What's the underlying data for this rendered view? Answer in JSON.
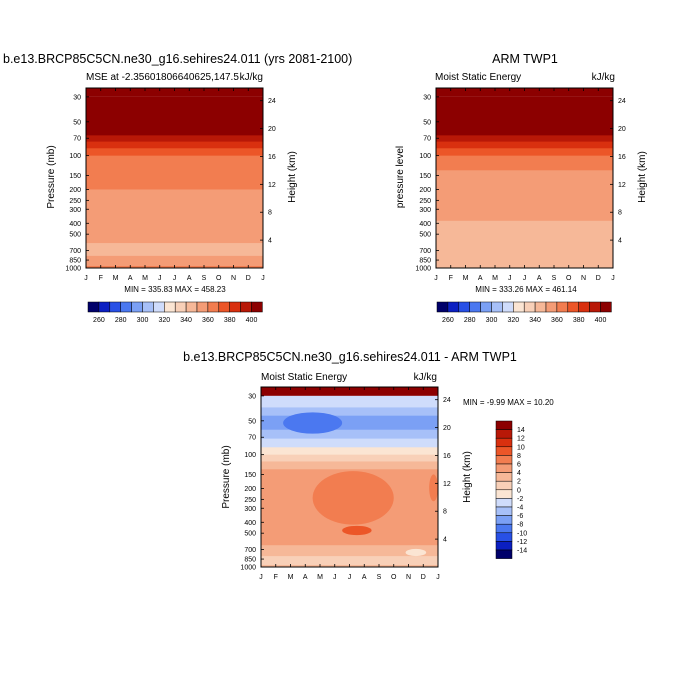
{
  "chart_data": [
    {
      "type": "heatmap",
      "title": "b.e13.BRCP85C5CN.ne30_g16.sehires24.011 (yrs 2081-2100)",
      "subtitle_left": "MSE at -2.35601806640625,147.5",
      "subtitle_right": "kJ/kg",
      "ylabel": "Pressure (mb)",
      "ylabel_right": "Height (km)",
      "x_ticks": [
        "J",
        "F",
        "M",
        "A",
        "M",
        "J",
        "J",
        "A",
        "S",
        "O",
        "N",
        "D",
        "J"
      ],
      "y_ticks": [
        "30",
        "50",
        "70",
        "100",
        "150",
        "200",
        "250",
        "300",
        "400",
        "500",
        "700",
        "850",
        "1000"
      ],
      "y_ticks_right": [
        "24",
        "20",
        "16",
        "12",
        "8",
        "4"
      ],
      "stats": "MIN = 335.83 MAX = 458.23",
      "layers": [
        {
          "from": 30,
          "to": 58,
          "value": 400
        },
        {
          "from": 58,
          "to": 66,
          "value": 390
        },
        {
          "from": 66,
          "to": 75,
          "value": 380
        },
        {
          "from": 75,
          "to": 86,
          "value": 370
        },
        {
          "from": 86,
          "to": 100,
          "value": 360
        },
        {
          "from": 100,
          "to": 200,
          "value": 350
        },
        {
          "from": 200,
          "to": 600,
          "value": 340
        },
        {
          "from": 600,
          "to": 780,
          "value": 335
        },
        {
          "from": 780,
          "to": 960,
          "value": 340
        },
        {
          "from": 960,
          "to": 1000,
          "value": 350
        }
      ]
    },
    {
      "type": "heatmap",
      "title": "ARM TWP1",
      "subtitle_left": "Moist Static Energy",
      "subtitle_right": "kJ/kg",
      "ylabel": "pressure level",
      "ylabel_right": "Height (km)",
      "x_ticks": [
        "J",
        "F",
        "M",
        "A",
        "M",
        "J",
        "J",
        "A",
        "S",
        "O",
        "N",
        "D",
        "J"
      ],
      "y_ticks": [
        "30",
        "50",
        "70",
        "100",
        "150",
        "200",
        "250",
        "300",
        "400",
        "500",
        "700",
        "850",
        "1000"
      ],
      "y_ticks_right": [
        "24",
        "20",
        "16",
        "12",
        "8",
        "4"
      ],
      "stats": "MIN = 333.26 MAX = 461.14",
      "layers": [
        {
          "from": 30,
          "to": 58,
          "value": 400
        },
        {
          "from": 58,
          "to": 66,
          "value": 390
        },
        {
          "from": 66,
          "to": 75,
          "value": 380
        },
        {
          "from": 75,
          "to": 86,
          "value": 370
        },
        {
          "from": 86,
          "to": 100,
          "value": 360
        },
        {
          "from": 100,
          "to": 135,
          "value": 350
        },
        {
          "from": 135,
          "to": 380,
          "value": 340
        },
        {
          "from": 380,
          "to": 1000,
          "value": 335
        }
      ]
    },
    {
      "type": "heatmap",
      "title": "b.e13.BRCP85C5CN.ne30_g16.sehires24.011 - ARM TWP1",
      "subtitle_left": "Moist Static Energy",
      "subtitle_right": "kJ/kg",
      "ylabel": "Pressure (mb)",
      "ylabel_right": "Height (km)",
      "x_ticks": [
        "J",
        "F",
        "M",
        "A",
        "M",
        "J",
        "J",
        "A",
        "S",
        "O",
        "N",
        "D",
        "J"
      ],
      "y_ticks": [
        "30",
        "50",
        "70",
        "100",
        "150",
        "200",
        "250",
        "300",
        "400",
        "500",
        "700",
        "850",
        "1000"
      ],
      "y_ticks_right": [
        "24",
        "20",
        "16",
        "12",
        "8",
        "4"
      ],
      "stats": "MIN =  -9.99 MAX =  10.20",
      "layers": [
        {
          "from": 30,
          "to": 38,
          "value": -3
        },
        {
          "from": 38,
          "to": 45,
          "value": -5
        },
        {
          "from": 45,
          "to": 60,
          "value": -7
        },
        {
          "from": 60,
          "to": 72,
          "value": -5
        },
        {
          "from": 72,
          "to": 86,
          "value": -3
        },
        {
          "from": 86,
          "to": 100,
          "value": -1
        },
        {
          "from": 100,
          "to": 115,
          "value": 1
        },
        {
          "from": 115,
          "to": 135,
          "value": 3
        },
        {
          "from": 135,
          "to": 300,
          "value": 5
        },
        {
          "from": 300,
          "to": 640,
          "value": 5
        },
        {
          "from": 640,
          "to": 800,
          "value": 3
        },
        {
          "from": 800,
          "to": 960,
          "value": 1
        },
        {
          "from": 960,
          "to": 1000,
          "value": 3
        }
      ],
      "patches": [
        {
          "p1": 42,
          "p2": 65,
          "m1": 1.5,
          "m2": 5.5,
          "value": -9
        },
        {
          "p1": 140,
          "p2": 420,
          "m1": 3.5,
          "m2": 9.0,
          "value": 7
        },
        {
          "p1": 430,
          "p2": 520,
          "m1": 5.5,
          "m2": 7.5,
          "value": 9
        },
        {
          "p1": 150,
          "p2": 260,
          "m1": 11.4,
          "m2": 12,
          "value": 7
        },
        {
          "p1": 690,
          "p2": 800,
          "m1": 9.8,
          "m2": 11.2,
          "value": -1
        }
      ]
    }
  ],
  "colorbar_horizontal": {
    "labels": [
      "260",
      "280",
      "300",
      "320",
      "340",
      "360",
      "380",
      "400"
    ],
    "colors": [
      "#00006a",
      "#0b1fc2",
      "#2850e6",
      "#4b78f0",
      "#7ba0f5",
      "#a7c0f8",
      "#cfdcfb",
      "#fbe5d3",
      "#f8d0b8",
      "#f6b898",
      "#f49c76",
      "#f27d50",
      "#ec5628",
      "#d9300f",
      "#b81807",
      "#8c0000"
    ]
  },
  "colorbar_vertical": {
    "labels": [
      "14",
      "12",
      "10",
      "8",
      "6",
      "4",
      "2",
      "0",
      "-2",
      "-4",
      "-6",
      "-8",
      "-10",
      "-12",
      "-14"
    ],
    "colors": [
      "#8c0000",
      "#b81807",
      "#d9300f",
      "#ec5628",
      "#f27d50",
      "#f49c76",
      "#f6b898",
      "#f8d0b8",
      "#fbe5d3",
      "#cfdcfb",
      "#a7c0f8",
      "#7ba0f5",
      "#4b78f0",
      "#2850e6",
      "#0b1fc2",
      "#00006a"
    ]
  }
}
